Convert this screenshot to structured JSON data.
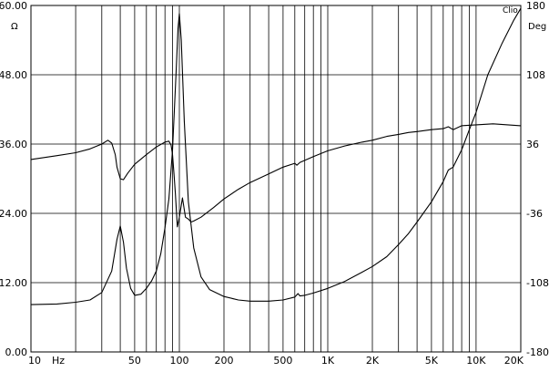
{
  "chart_data": {
    "type": "line",
    "title": "",
    "brand": "Clio",
    "x_scale": "log",
    "xlim": [
      10,
      20000
    ],
    "x_ticks": [
      {
        "value": 10,
        "label": "10"
      },
      {
        "value": 50,
        "label": "50"
      },
      {
        "value": 100,
        "label": "100"
      },
      {
        "value": 200,
        "label": "200"
      },
      {
        "value": 500,
        "label": "500"
      },
      {
        "value": 1000,
        "label": "1K"
      },
      {
        "value": 2000,
        "label": "2K"
      },
      {
        "value": 5000,
        "label": "5K"
      },
      {
        "value": 10000,
        "label": "10K"
      },
      {
        "value": 20000,
        "label": "20K"
      }
    ],
    "x_unit": "Hz",
    "x_unit_value": 20,
    "y_left": {
      "unit": "Ω",
      "ylim": [
        0,
        60
      ],
      "ticks": [
        "0.00",
        "12.00",
        "24.00",
        "36.00",
        "48.00",
        "60.00"
      ],
      "tick_values": [
        0,
        12,
        24,
        36,
        48,
        60
      ]
    },
    "y_right": {
      "unit": "Deg",
      "ylim": [
        -180,
        180
      ],
      "ticks": [
        "-180",
        "-108",
        "-36",
        "36",
        "108",
        "180"
      ],
      "tick_values": [
        -180,
        -108,
        -36,
        36,
        108,
        180
      ]
    },
    "grid": true,
    "series": [
      {
        "axis": "left",
        "points": [
          [
            10,
            8.2
          ],
          [
            15,
            8.3
          ],
          [
            20,
            8.6
          ],
          [
            25,
            9.0
          ],
          [
            30,
            10.3
          ],
          [
            35,
            14.0
          ],
          [
            38,
            19.5
          ],
          [
            40,
            21.8
          ],
          [
            42,
            19.0
          ],
          [
            44,
            14.5
          ],
          [
            47,
            11.0
          ],
          [
            50,
            9.8
          ],
          [
            55,
            10.0
          ],
          [
            60,
            11.0
          ],
          [
            65,
            12.3
          ],
          [
            70,
            14.0
          ],
          [
            75,
            17.0
          ],
          [
            80,
            21.5
          ],
          [
            85,
            26.5
          ],
          [
            90,
            35.0
          ],
          [
            95,
            48.0
          ],
          [
            98,
            56.0
          ],
          [
            100,
            58.6
          ],
          [
            103,
            54.0
          ],
          [
            108,
            40.0
          ],
          [
            115,
            26.0
          ],
          [
            125,
            18.0
          ],
          [
            140,
            13.0
          ],
          [
            160,
            10.8
          ],
          [
            200,
            9.6
          ],
          [
            250,
            9.0
          ],
          [
            300,
            8.8
          ],
          [
            400,
            8.8
          ],
          [
            500,
            9.0
          ],
          [
            600,
            9.5
          ],
          [
            630,
            10.1
          ],
          [
            650,
            9.7
          ],
          [
            700,
            9.8
          ],
          [
            800,
            10.2
          ],
          [
            1000,
            11.0
          ],
          [
            1300,
            12.2
          ],
          [
            1700,
            13.8
          ],
          [
            2000,
            14.8
          ],
          [
            2500,
            16.5
          ],
          [
            3000,
            18.6
          ],
          [
            3500,
            20.5
          ],
          [
            4000,
            22.5
          ],
          [
            5000,
            26.0
          ],
          [
            6000,
            29.5
          ],
          [
            6500,
            31.5
          ],
          [
            7000,
            32.0
          ],
          [
            8000,
            35.0
          ],
          [
            9000,
            38.5
          ],
          [
            10000,
            41.5
          ],
          [
            12000,
            48.0
          ],
          [
            15000,
            53.5
          ],
          [
            18000,
            57.5
          ],
          [
            20000,
            59.5
          ]
        ]
      },
      {
        "axis": "right",
        "points": [
          [
            10,
            20
          ],
          [
            15,
            24
          ],
          [
            20,
            27
          ],
          [
            25,
            31
          ],
          [
            30,
            36
          ],
          [
            33,
            40
          ],
          [
            35,
            37
          ],
          [
            37,
            25
          ],
          [
            38,
            12
          ],
          [
            40,
            0
          ],
          [
            42,
            -1
          ],
          [
            45,
            6
          ],
          [
            50,
            15
          ],
          [
            60,
            25
          ],
          [
            70,
            33
          ],
          [
            80,
            38
          ],
          [
            85,
            39
          ],
          [
            88,
            35
          ],
          [
            90,
            25
          ],
          [
            92,
            5
          ],
          [
            94,
            -15
          ],
          [
            97,
            -50
          ],
          [
            100,
            -40
          ],
          [
            105,
            -20
          ],
          [
            110,
            -40
          ],
          [
            115,
            -42
          ],
          [
            120,
            -45
          ],
          [
            125,
            -44
          ],
          [
            140,
            -40
          ],
          [
            170,
            -30
          ],
          [
            200,
            -21
          ],
          [
            250,
            -11
          ],
          [
            300,
            -4
          ],
          [
            400,
            5
          ],
          [
            500,
            12
          ],
          [
            600,
            16
          ],
          [
            620,
            14
          ],
          [
            650,
            17
          ],
          [
            700,
            19
          ],
          [
            800,
            23
          ],
          [
            1000,
            29
          ],
          [
            1300,
            34
          ],
          [
            1700,
            38
          ],
          [
            2000,
            40
          ],
          [
            2500,
            44
          ],
          [
            3000,
            46
          ],
          [
            3500,
            48
          ],
          [
            4000,
            49
          ],
          [
            5000,
            51
          ],
          [
            6000,
            52
          ],
          [
            6500,
            54
          ],
          [
            7000,
            51
          ],
          [
            8000,
            55
          ],
          [
            10000,
            56
          ],
          [
            13000,
            57
          ],
          [
            20000,
            55
          ]
        ]
      }
    ]
  }
}
